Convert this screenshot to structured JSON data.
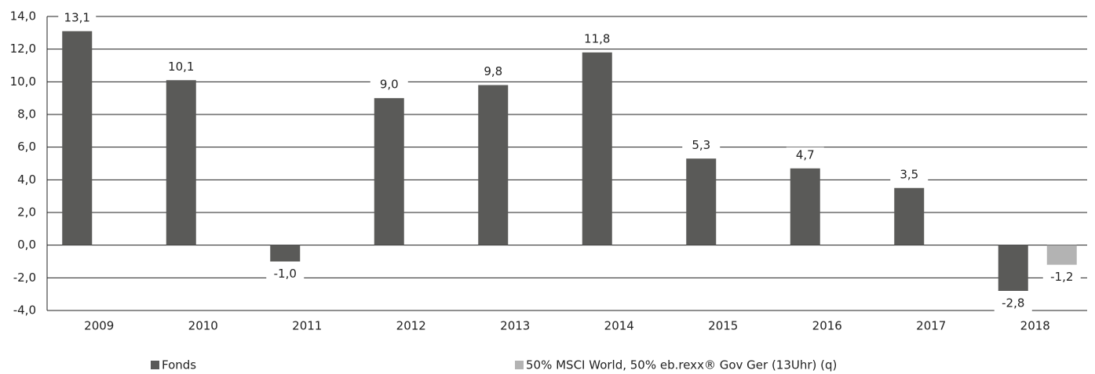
{
  "chart_data": {
    "type": "bar",
    "categories": [
      "2009",
      "2010",
      "2011",
      "2012",
      "2013",
      "2014",
      "2015",
      "2016",
      "2017",
      "2018"
    ],
    "series": [
      {
        "name": "Fonds",
        "color": "#5a5a58",
        "values": [
          13.1,
          10.1,
          -1.0,
          9.0,
          9.8,
          11.8,
          5.3,
          4.7,
          3.5,
          -2.8
        ],
        "value_labels": [
          "13,1",
          "10,1",
          "-1,0",
          "9,0",
          "9,8",
          "11,8",
          "5,3",
          "4,7",
          "3,5",
          "-2,8"
        ]
      },
      {
        "name": "50% MSCI World, 50% eb.rexx® Gov Ger (13Uhr) (q)",
        "color": "#b3b3b3",
        "values": [
          null,
          null,
          null,
          null,
          null,
          null,
          null,
          null,
          null,
          -1.2
        ],
        "value_labels": [
          null,
          null,
          null,
          null,
          null,
          null,
          null,
          null,
          null,
          "-1,2"
        ]
      }
    ],
    "ylim": [
      -4,
      14
    ],
    "yticks": [
      {
        "value": -4,
        "label": "-4,0"
      },
      {
        "value": -2,
        "label": "-2,0"
      },
      {
        "value": 0,
        "label": "0,0"
      },
      {
        "value": 2,
        "label": "2,0"
      },
      {
        "value": 4,
        "label": "4,0"
      },
      {
        "value": 6,
        "label": "6,0"
      },
      {
        "value": 8,
        "label": "8,0"
      },
      {
        "value": 10,
        "label": "10,0"
      },
      {
        "value": 12,
        "label": "12,0"
      },
      {
        "value": 14,
        "label": "14,0"
      }
    ],
    "grid": true,
    "legend": "bottom"
  }
}
